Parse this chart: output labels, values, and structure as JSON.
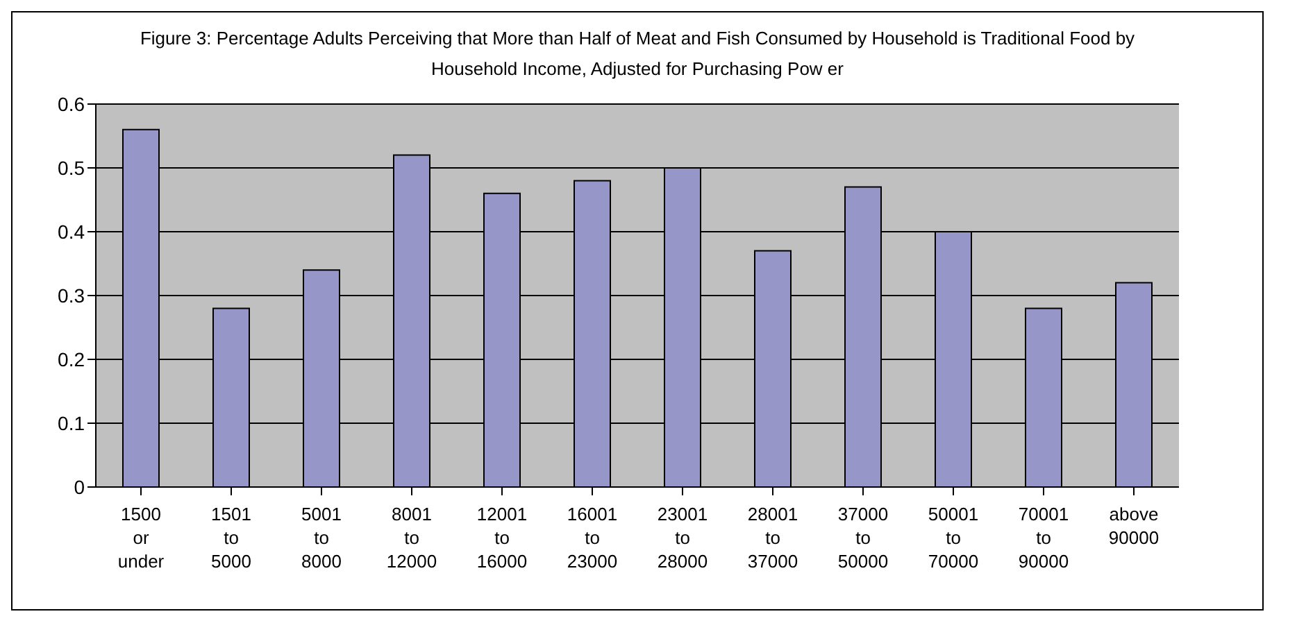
{
  "chart_data": {
    "type": "bar",
    "title": "Figure 3: Percentage Adults Perceiving that More than Half of Meat and Fish Consumed by Household is Traditional Food by Household Income, Adjusted for Purchasing Pow er",
    "categories": [
      "1500 or under",
      "1501 to 5000",
      "5001 to 8000",
      "8001 to 12000",
      "12001 to 16000",
      "16001 to 23000",
      "23001 to 28000",
      "28001 to 37000",
      "37000 to 50000",
      "50001 to 70000",
      "70001 to 90000",
      "above 90000"
    ],
    "values": [
      0.56,
      0.28,
      0.34,
      0.52,
      0.46,
      0.48,
      0.5,
      0.37,
      0.47,
      0.4,
      0.28,
      0.32
    ],
    "color": "#9696c8",
    "ylim": [
      0,
      0.6
    ],
    "yticks": [
      0,
      0.1,
      0.2,
      0.3,
      0.4,
      0.5,
      0.6
    ],
    "grid": "y"
  }
}
